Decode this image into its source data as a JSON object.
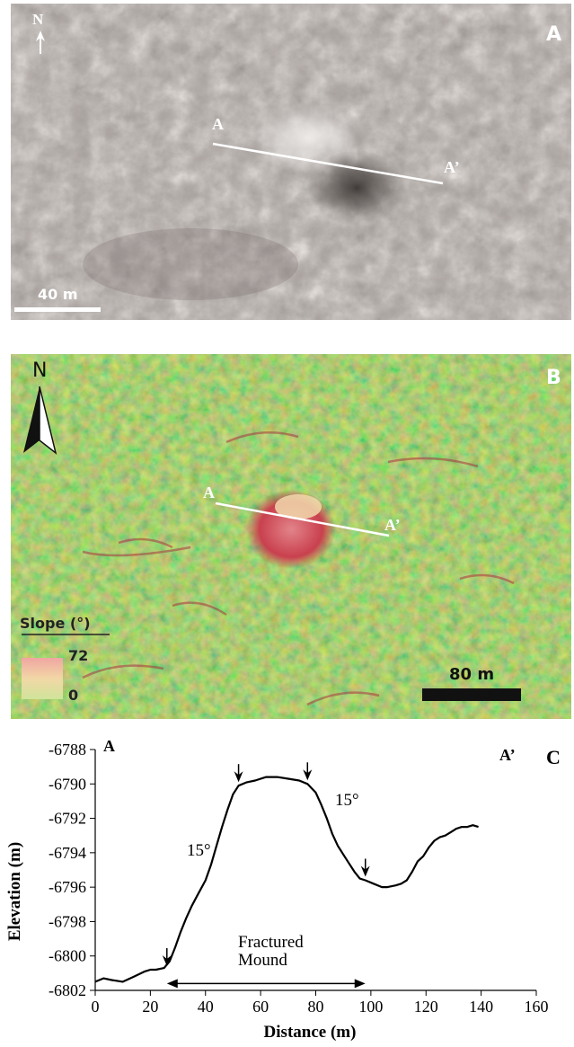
{
  "panel_a": {
    "letter": "A",
    "north": "N",
    "section_start": "A",
    "section_end": "A’",
    "scale_bar": "40 m"
  },
  "panel_b": {
    "letter": "B",
    "north": "N",
    "section_start": "A",
    "section_end": "A’",
    "legend": {
      "title": "Slope (°)",
      "max": "72",
      "min": "0"
    },
    "scale_bar": "80 m"
  },
  "panel_c": {
    "letter": "C",
    "section_start": "A",
    "section_end": "A’",
    "slope_label_left": "15°",
    "slope_label_right": "15°",
    "feature_label_line1": "Fractured",
    "feature_label_line2": "Mound"
  },
  "chart_data": {
    "type": "line",
    "xlabel": "Distance (m)",
    "ylabel": "Elevation (m)",
    "xlim": [
      0,
      160
    ],
    "ylim": [
      -6802,
      -6788
    ],
    "xticks": [
      0,
      20,
      40,
      60,
      80,
      100,
      120,
      140,
      160
    ],
    "yticks": [
      -6788,
      -6790,
      -6792,
      -6794,
      -6796,
      -6798,
      -6800,
      -6802
    ],
    "grid": false,
    "series": [
      {
        "x": [
          0,
          3,
          6,
          10,
          14,
          18,
          20,
          22,
          25,
          27,
          29,
          31,
          33,
          35,
          37,
          40,
          42,
          44,
          46,
          48,
          50,
          52,
          55,
          58,
          62,
          66,
          70,
          74,
          77,
          80,
          82,
          84,
          86,
          88,
          90,
          92,
          94,
          96,
          98,
          101,
          104,
          106,
          109,
          111,
          113,
          115,
          117,
          119,
          121,
          123,
          125,
          127,
          129,
          131,
          133,
          135,
          137,
          139
        ],
        "y": [
          -6801.5,
          -6801.3,
          -6801.4,
          -6801.5,
          -6801.2,
          -6800.9,
          -6800.8,
          -6800.8,
          -6800.7,
          -6800.3,
          -6799.5,
          -6798.6,
          -6797.8,
          -6797.1,
          -6796.5,
          -6795.6,
          -6794.7,
          -6793.6,
          -6792.5,
          -6791.5,
          -6790.6,
          -6790.1,
          -6789.9,
          -6789.8,
          -6789.6,
          -6789.6,
          -6789.7,
          -6789.8,
          -6790.0,
          -6790.5,
          -6791.2,
          -6792.0,
          -6792.9,
          -6793.6,
          -6794.1,
          -6794.6,
          -6795.1,
          -6795.5,
          -6795.6,
          -6795.8,
          -6796.0,
          -6796.0,
          -6795.9,
          -6795.8,
          -6795.6,
          -6795.1,
          -6794.5,
          -6794.2,
          -6793.7,
          -6793.3,
          -6793.1,
          -6793.0,
          -6792.8,
          -6792.6,
          -6792.5,
          -6792.5,
          -6792.4,
          -6792.5
        ]
      }
    ],
    "markers": [
      {
        "x": 26,
        "y": -6800.8
      },
      {
        "x": 52,
        "y": -6790.1
      },
      {
        "x": 77,
        "y": -6790.0
      },
      {
        "x": 98,
        "y": -6795.6
      }
    ],
    "span": {
      "from": 26,
      "to": 98,
      "y": -6801.6
    }
  }
}
